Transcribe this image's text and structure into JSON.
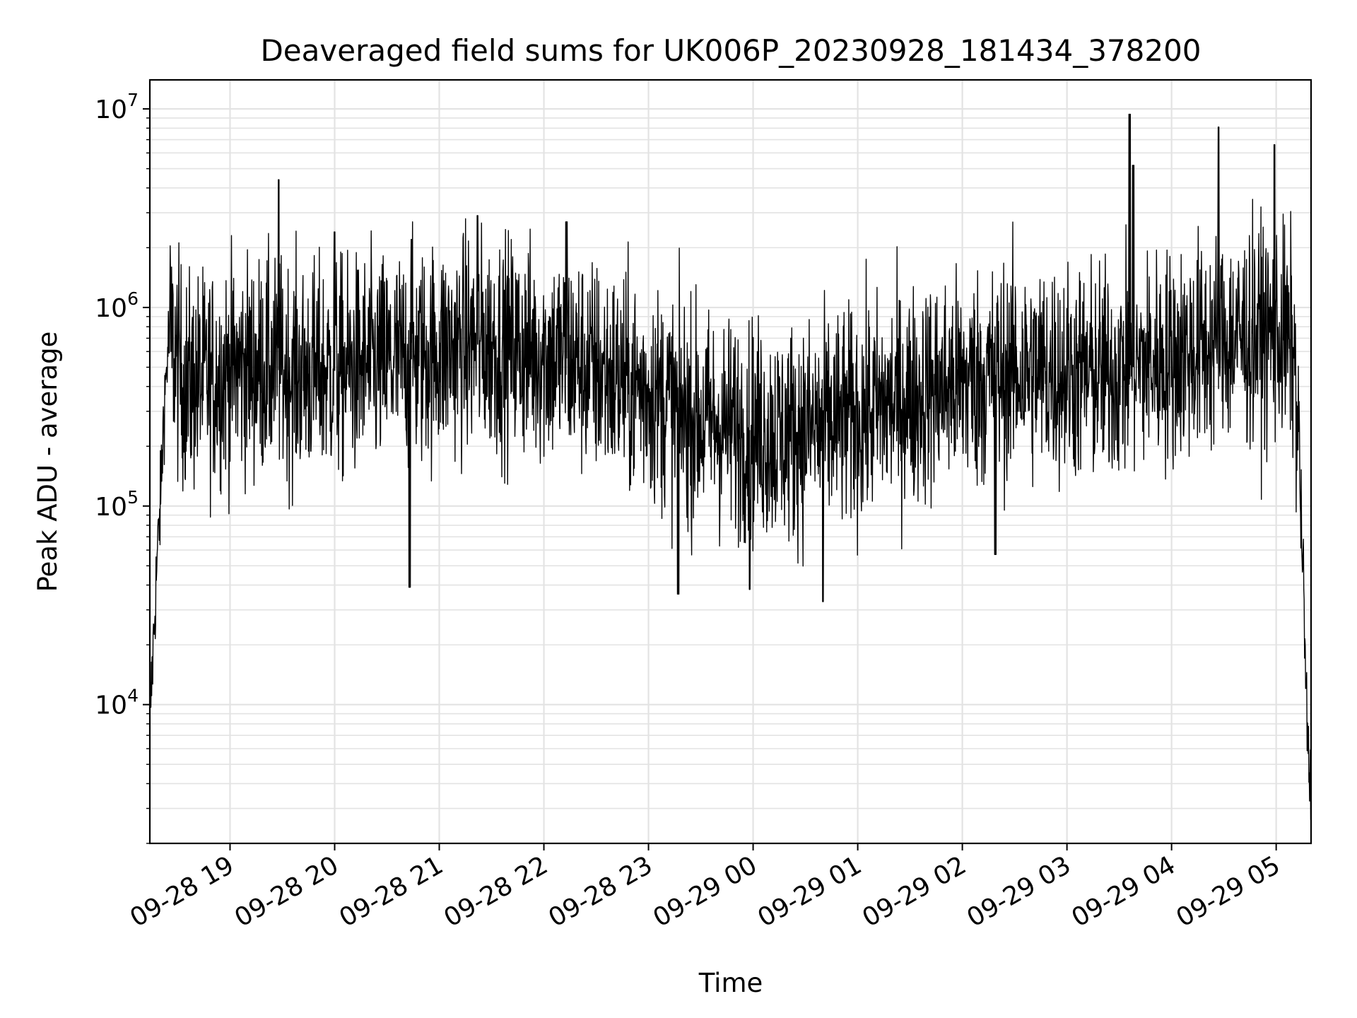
{
  "chart_data": {
    "type": "line",
    "title": "Deaveraged field sums for UK006P_20230928_181434_378200",
    "xlabel": "Time",
    "ylabel": "Peak ADU - average",
    "yscale": "log",
    "ylim": [
      2000,
      14000000
    ],
    "xlim": [
      "09-28 18:14",
      "09-29 05:20"
    ],
    "x_tick_labels": [
      "09-28 19",
      "09-28 20",
      "09-28 21",
      "09-28 22",
      "09-28 23",
      "09-29 00",
      "09-29 01",
      "09-29 02",
      "09-29 03",
      "09-29 04",
      "09-29 05"
    ],
    "y_tick_labels": [
      {
        "base": "10",
        "exp": "4",
        "value": 10000
      },
      {
        "base": "10",
        "exp": "5",
        "value": 100000
      },
      {
        "base": "10",
        "exp": "6",
        "value": 1000000
      },
      {
        "base": "10",
        "exp": "7",
        "value": 10000000
      }
    ],
    "grid": true,
    "line_color": "#000000",
    "series": [
      {
        "x": [
          "09-28 18:14",
          "09-28 18:16",
          "09-28 18:18",
          "09-28 18:20",
          "09-28 18:22",
          "09-28 18:25",
          "09-28 18:28",
          "09-28 18:32",
          "09-28 18:36",
          "09-28 18:40",
          "09-28 18:45",
          "09-28 18:50",
          "09-28 18:55",
          "09-28 19:00",
          "09-28 19:10",
          "09-28 19:20",
          "09-28 19:30",
          "09-28 19:40",
          "09-28 19:50",
          "09-28 20:00",
          "09-28 20:15",
          "09-28 20:30",
          "09-28 20:45",
          "09-28 21:00",
          "09-28 21:15",
          "09-28 21:30",
          "09-28 21:45",
          "09-28 22:00",
          "09-28 22:15",
          "09-28 22:30",
          "09-28 22:45",
          "09-28 23:00",
          "09-28 23:15",
          "09-28 23:30",
          "09-28 23:45",
          "09-29 00:00",
          "09-29 00:15",
          "09-29 00:30",
          "09-29 00:45",
          "09-29 01:00",
          "09-29 01:15",
          "09-29 01:30",
          "09-29 01:45",
          "09-29 02:00",
          "09-29 02:15",
          "09-29 02:30",
          "09-29 02:45",
          "09-29 03:00",
          "09-29 03:15",
          "09-29 03:30",
          "09-29 03:45",
          "09-29 04:00",
          "09-29 04:15",
          "09-29 04:30",
          "09-29 04:45",
          "09-29 05:00",
          "09-29 05:05",
          "09-29 05:10",
          "09-29 05:13",
          "09-29 05:16",
          "09-29 05:18",
          "09-29 05:20"
        ],
        "y": [
          8000,
          20000,
          50000,
          100000,
          300000,
          750000,
          600000,
          450000,
          400000,
          420000,
          430000,
          440000,
          460000,
          480000,
          500000,
          500000,
          480000,
          470000,
          470000,
          480000,
          500000,
          520000,
          550000,
          600000,
          650000,
          650000,
          620000,
          580000,
          550000,
          480000,
          420000,
          380000,
          320000,
          270000,
          250000,
          240000,
          230000,
          240000,
          260000,
          280000,
          320000,
          350000,
          390000,
          420000,
          450000,
          480000,
          480000,
          470000,
          460000,
          480000,
          520000,
          560000,
          620000,
          680000,
          720000,
          750000,
          700000,
          600000,
          200000,
          30000,
          6000,
          3500
        ],
        "spikes": [
          {
            "x": "09-28 19:28",
            "y": 4400000
          },
          {
            "x": "09-28 20:00",
            "y": 2400000
          },
          {
            "x": "09-28 20:44",
            "y": 2200000
          },
          {
            "x": "09-28 20:43",
            "y": 39000
          },
          {
            "x": "09-28 21:22",
            "y": 2900000
          },
          {
            "x": "09-28 22:13",
            "y": 2700000
          },
          {
            "x": "09-28 23:17",
            "y": 36000
          },
          {
            "x": "09-28 23:58",
            "y": 38000
          },
          {
            "x": "09-29 00:40",
            "y": 33000
          },
          {
            "x": "09-29 02:19",
            "y": 57000
          },
          {
            "x": "09-29 03:36",
            "y": 9400000
          },
          {
            "x": "09-29 03:38",
            "y": 5200000
          },
          {
            "x": "09-29 04:27",
            "y": 8100000
          },
          {
            "x": "09-29 04:59",
            "y": 6600000
          }
        ]
      }
    ]
  }
}
